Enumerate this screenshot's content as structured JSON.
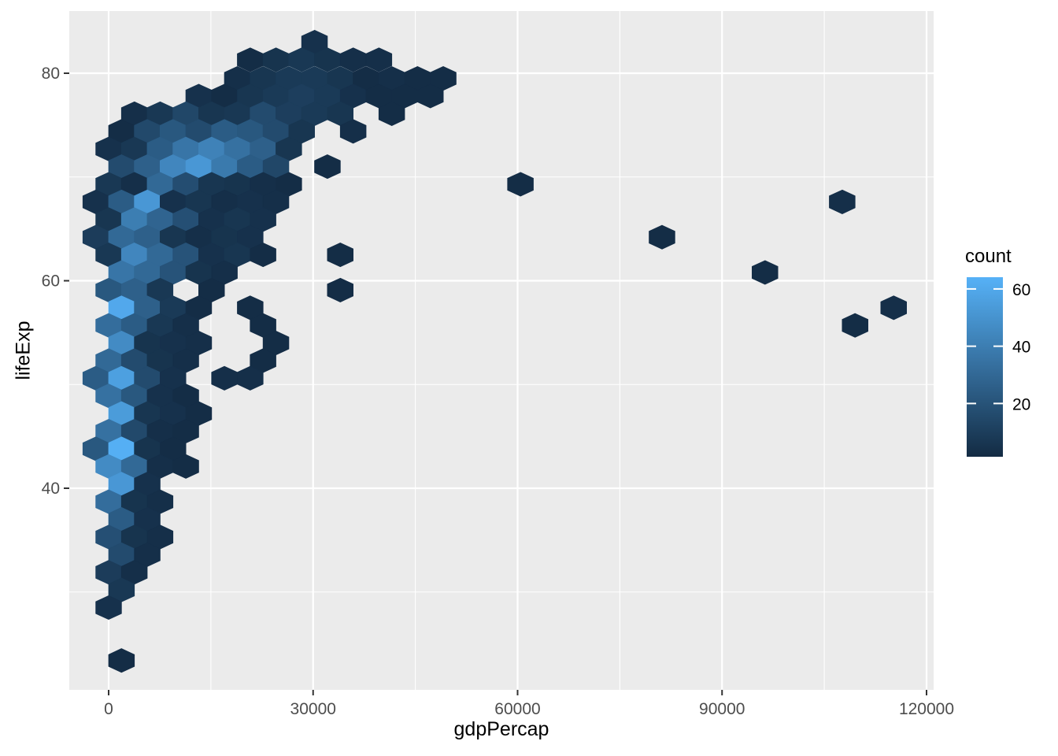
{
  "chart_data": {
    "type": "hexbin",
    "title": "",
    "xlabel": "gdpPercap",
    "ylabel": "lifeExp",
    "x_ticks": [
      0,
      30000,
      60000,
      90000,
      120000
    ],
    "x_tick_labels": [
      "0",
      "30000",
      "60000",
      "90000",
      "120000"
    ],
    "x_minor_ticks": [
      15000,
      45000,
      75000,
      105000
    ],
    "y_ticks": [
      40,
      60,
      80
    ],
    "y_tick_labels": [
      "40",
      "60",
      "80"
    ],
    "y_minor_ticks": [
      30,
      50,
      70
    ],
    "xlim": [
      -5775,
      121050
    ],
    "ylim": [
      20.6,
      86.0
    ],
    "grid": "on",
    "legend": {
      "title": "count",
      "position": "right",
      "breaks": [
        20,
        40,
        60
      ],
      "break_labels": [
        "20",
        "40",
        "60"
      ],
      "domain": [
        1.4,
        64.1
      ],
      "color_low": "#132B43",
      "color_high": "#56B1F7"
    },
    "colors": {
      "panel_bg": "#EBEBEB",
      "grid_line": "#FFFFFF",
      "tick_label": "#4D4D4D",
      "tick_mark": "#333333",
      "axis_title": "#000000"
    },
    "hex_bin_width_x": 3776,
    "hex_bin_height_y": 1.7,
    "hexes": [
      [
        30211,
        83.0,
        4
      ],
      [
        20770,
        81.3,
        2
      ],
      [
        24546,
        81.3,
        5
      ],
      [
        28323,
        81.3,
        7
      ],
      [
        32099,
        81.3,
        5
      ],
      [
        35876,
        81.3,
        3
      ],
      [
        39652,
        81.3,
        3
      ],
      [
        18882,
        79.5,
        3
      ],
      [
        22658,
        79.5,
        6
      ],
      [
        26435,
        79.5,
        8
      ],
      [
        30211,
        79.5,
        8
      ],
      [
        33987,
        79.5,
        6
      ],
      [
        37764,
        79.5,
        2
      ],
      [
        41540,
        79.5,
        3
      ],
      [
        45317,
        79.5,
        2
      ],
      [
        49093,
        79.5,
        2
      ],
      [
        13217,
        77.8,
        4
      ],
      [
        16994,
        77.8,
        2
      ],
      [
        20770,
        77.8,
        6
      ],
      [
        24546,
        77.8,
        8
      ],
      [
        28323,
        77.8,
        10
      ],
      [
        32099,
        77.8,
        8
      ],
      [
        35876,
        77.8,
        4
      ],
      [
        39652,
        77.8,
        2
      ],
      [
        43428,
        77.8,
        2
      ],
      [
        47205,
        77.8,
        2
      ],
      [
        3776,
        76.1,
        3
      ],
      [
        7553,
        76.1,
        7
      ],
      [
        11329,
        76.1,
        14
      ],
      [
        15105,
        76.1,
        6
      ],
      [
        18882,
        76.1,
        7
      ],
      [
        22658,
        76.1,
        16
      ],
      [
        26435,
        76.1,
        10
      ],
      [
        30211,
        76.1,
        8
      ],
      [
        33987,
        76.1,
        6
      ],
      [
        41540,
        76.1,
        2
      ],
      [
        1888,
        74.4,
        2
      ],
      [
        5664,
        74.4,
        15
      ],
      [
        9441,
        74.4,
        22
      ],
      [
        13217,
        74.4,
        16
      ],
      [
        16994,
        74.4,
        24
      ],
      [
        20770,
        74.4,
        22
      ],
      [
        24546,
        74.4,
        16
      ],
      [
        28323,
        74.4,
        6
      ],
      [
        35876,
        74.4,
        3
      ],
      [
        0,
        72.7,
        4
      ],
      [
        3776,
        72.7,
        7
      ],
      [
        7553,
        72.7,
        24
      ],
      [
        11329,
        72.7,
        36
      ],
      [
        15105,
        72.7,
        42
      ],
      [
        18882,
        72.7,
        34
      ],
      [
        22658,
        72.7,
        26
      ],
      [
        26435,
        72.7,
        6
      ],
      [
        1888,
        71.0,
        16
      ],
      [
        5664,
        71.0,
        26
      ],
      [
        9441,
        71.0,
        44
      ],
      [
        13217,
        71.0,
        52
      ],
      [
        16994,
        71.0,
        38
      ],
      [
        20770,
        71.0,
        24
      ],
      [
        24546,
        71.0,
        14
      ],
      [
        32099,
        71.0,
        2
      ],
      [
        0,
        69.3,
        7
      ],
      [
        3776,
        69.3,
        3
      ],
      [
        7553,
        69.3,
        30
      ],
      [
        11329,
        69.3,
        17
      ],
      [
        15105,
        69.3,
        6
      ],
      [
        18882,
        69.3,
        5
      ],
      [
        22658,
        69.3,
        3
      ],
      [
        26435,
        69.3,
        2
      ],
      [
        60423,
        69.3,
        2
      ],
      [
        -1888,
        67.6,
        4
      ],
      [
        1888,
        67.6,
        24
      ],
      [
        5664,
        67.6,
        52
      ],
      [
        9441,
        67.6,
        4
      ],
      [
        13217,
        67.6,
        6
      ],
      [
        16994,
        67.6,
        3
      ],
      [
        20770,
        67.6,
        4
      ],
      [
        24546,
        67.6,
        3
      ],
      [
        107627,
        67.6,
        3
      ],
      [
        0,
        65.9,
        6
      ],
      [
        3776,
        65.9,
        40
      ],
      [
        7553,
        65.9,
        28
      ],
      [
        11329,
        65.9,
        18
      ],
      [
        15105,
        65.9,
        4
      ],
      [
        18882,
        65.9,
        6
      ],
      [
        22658,
        65.9,
        4
      ],
      [
        -1888,
        64.2,
        9
      ],
      [
        1888,
        64.2,
        30
      ],
      [
        5664,
        64.2,
        26
      ],
      [
        9441,
        64.2,
        6
      ],
      [
        13217,
        64.2,
        3
      ],
      [
        16994,
        64.2,
        5
      ],
      [
        20770,
        64.2,
        4
      ],
      [
        81193,
        64.2,
        2
      ],
      [
        0,
        62.5,
        7
      ],
      [
        3776,
        62.5,
        44
      ],
      [
        7553,
        62.5,
        30
      ],
      [
        11329,
        62.5,
        20
      ],
      [
        15105,
        62.5,
        4
      ],
      [
        18882,
        62.5,
        6
      ],
      [
        22658,
        62.5,
        2
      ],
      [
        33987,
        62.5,
        2
      ],
      [
        1888,
        60.8,
        36
      ],
      [
        5664,
        60.8,
        30
      ],
      [
        9441,
        60.8,
        20
      ],
      [
        13217,
        60.8,
        5
      ],
      [
        16994,
        60.8,
        3
      ],
      [
        96298,
        60.8,
        2
      ],
      [
        0,
        59.1,
        22
      ],
      [
        3776,
        59.1,
        26
      ],
      [
        7553,
        59.1,
        7
      ],
      [
        15105,
        59.1,
        2
      ],
      [
        33987,
        59.1,
        2
      ],
      [
        1888,
        57.4,
        60
      ],
      [
        5664,
        57.4,
        26
      ],
      [
        9441,
        57.4,
        8
      ],
      [
        13217,
        57.4,
        2
      ],
      [
        20770,
        57.4,
        2
      ],
      [
        115180,
        57.4,
        3
      ],
      [
        0,
        55.7,
        32
      ],
      [
        3776,
        55.7,
        24
      ],
      [
        7553,
        55.7,
        7
      ],
      [
        11329,
        55.7,
        3
      ],
      [
        22658,
        55.7,
        2
      ],
      [
        109516,
        55.7,
        2
      ],
      [
        1888,
        54.0,
        46
      ],
      [
        5664,
        54.0,
        5
      ],
      [
        9441,
        54.0,
        4
      ],
      [
        13217,
        54.0,
        3
      ],
      [
        24546,
        54.0,
        2
      ],
      [
        0,
        52.3,
        30
      ],
      [
        3776,
        52.3,
        16
      ],
      [
        7553,
        52.3,
        5
      ],
      [
        11329,
        52.3,
        3
      ],
      [
        22658,
        52.3,
        2
      ],
      [
        -1888,
        50.6,
        24
      ],
      [
        1888,
        50.6,
        56
      ],
      [
        5664,
        50.6,
        16
      ],
      [
        9441,
        50.6,
        4
      ],
      [
        16994,
        50.6,
        3
      ],
      [
        20770,
        50.6,
        3
      ],
      [
        0,
        48.9,
        34
      ],
      [
        3776,
        48.9,
        22
      ],
      [
        7553,
        48.9,
        4
      ],
      [
        11329,
        48.9,
        2
      ],
      [
        1888,
        47.2,
        54
      ],
      [
        5664,
        47.2,
        6
      ],
      [
        9441,
        47.2,
        4
      ],
      [
        13217,
        47.2,
        2
      ],
      [
        0,
        45.5,
        34
      ],
      [
        3776,
        45.5,
        15
      ],
      [
        7553,
        45.5,
        3
      ],
      [
        11329,
        45.5,
        2
      ],
      [
        -1888,
        43.8,
        22
      ],
      [
        1888,
        43.8,
        63
      ],
      [
        5664,
        43.8,
        5
      ],
      [
        9441,
        43.8,
        2
      ],
      [
        0,
        42.1,
        46
      ],
      [
        3776,
        42.1,
        30
      ],
      [
        7553,
        42.1,
        3
      ],
      [
        11329,
        42.1,
        2
      ],
      [
        1888,
        40.4,
        52
      ],
      [
        5664,
        40.4,
        4
      ],
      [
        0,
        38.7,
        32
      ],
      [
        3776,
        38.7,
        5
      ],
      [
        7553,
        38.7,
        3
      ],
      [
        1888,
        37.0,
        24
      ],
      [
        5664,
        37.0,
        4
      ],
      [
        0,
        35.3,
        18
      ],
      [
        3776,
        35.3,
        5
      ],
      [
        7553,
        35.3,
        3
      ],
      [
        1888,
        33.6,
        16
      ],
      [
        5664,
        33.6,
        3
      ],
      [
        0,
        31.9,
        9
      ],
      [
        3776,
        31.9,
        3
      ],
      [
        1888,
        30.2,
        7
      ],
      [
        0,
        28.5,
        4
      ],
      [
        1888,
        23.4,
        2
      ]
    ]
  }
}
